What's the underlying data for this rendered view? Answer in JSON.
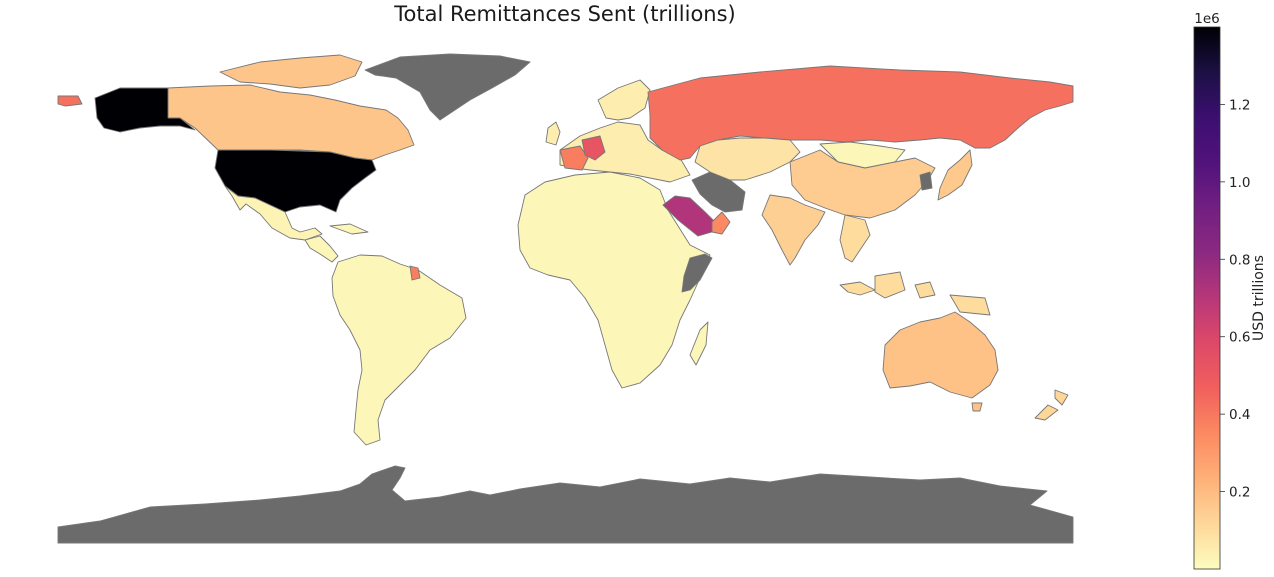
{
  "title": "Total Remittances Sent (trillions)",
  "colorbar": {
    "label": "USD trillions",
    "offset_label": "1e6",
    "min": 0,
    "max": 1.4,
    "ticks": [
      0.2,
      0.4,
      0.6,
      0.8,
      1.0,
      1.2
    ],
    "tick_labels": [
      "0.2",
      "0.4",
      "0.6",
      "0.8",
      "1.0",
      "1.2"
    ],
    "colormap": "magma_r",
    "stops": [
      "#fcfdbf",
      "#fed799",
      "#feb078",
      "#fc8961",
      "#f1605d",
      "#de4968",
      "#b73779",
      "#8c2981",
      "#721f81",
      "#51127c",
      "#3b0f70",
      "#1c1044",
      "#000004"
    ]
  },
  "no_data_color": "#6b6b6b",
  "chart_data": {
    "type": "choropleth",
    "title": "Total Remittances Sent (trillions)",
    "value_label": "USD trillions",
    "scale_multiplier": "1e6",
    "range": [
      0,
      1.4
    ],
    "regions": [
      {
        "name": "United States",
        "value": 1.4
      },
      {
        "name": "Canada",
        "value": 0.17
      },
      {
        "name": "Mexico",
        "value": 0.03
      },
      {
        "name": "South America",
        "value": 0.02
      },
      {
        "name": "Russia",
        "value": 0.42
      },
      {
        "name": "Europe",
        "value": 0.05
      },
      {
        "name": "Germany",
        "value": 0.52
      },
      {
        "name": "France",
        "value": 0.38
      },
      {
        "name": "Africa",
        "value": 0.02
      },
      {
        "name": "Saudi Arabia",
        "value": 0.72
      },
      {
        "name": "Oman",
        "value": 0.35
      },
      {
        "name": "China",
        "value": 0.15
      },
      {
        "name": "Kazakhstan",
        "value": 0.08
      },
      {
        "name": "Mongolia",
        "value": 0.02
      },
      {
        "name": "India",
        "value": 0.14
      },
      {
        "name": "Japan",
        "value": 0.16
      },
      {
        "name": "Southeast Asia",
        "value": 0.1
      },
      {
        "name": "Australia",
        "value": 0.18
      },
      {
        "name": "New Zealand",
        "value": 0.12
      },
      {
        "name": "Greenland",
        "value": null
      },
      {
        "name": "Antarctica",
        "value": null
      },
      {
        "name": "Iran",
        "value": null
      },
      {
        "name": "Somalia",
        "value": null
      }
    ]
  }
}
